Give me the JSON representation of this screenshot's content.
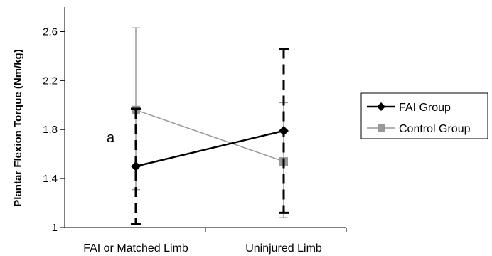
{
  "chart_data": {
    "type": "line",
    "title": "",
    "xlabel": "",
    "ylabel": "Plantar Flexion Torque (Nm/kg)",
    "categories": [
      "FAI or Matched Limb",
      "Uninjured Limb"
    ],
    "ylim": [
      1,
      2.8
    ],
    "yticks": [
      1,
      1.4,
      1.8,
      2.2,
      2.6
    ],
    "ytick_labels": [
      "1",
      "1.4",
      "1.8",
      "2.2",
      "2.6"
    ],
    "grid": false,
    "legend_position": "right",
    "annotations": [
      {
        "text": "a",
        "category": "FAI or Matched Limb"
      }
    ],
    "series": [
      {
        "name": "FAI Group",
        "color": "#000000",
        "marker": "diamond",
        "error_style": "dashed",
        "values": [
          1.5,
          1.79
        ],
        "error_low": [
          1.03,
          1.12
        ],
        "error_high": [
          1.97,
          2.46
        ]
      },
      {
        "name": "Control Group",
        "color": "#999999",
        "marker": "square",
        "error_style": "solid",
        "values": [
          1.96,
          1.54
        ],
        "error_low": [
          1.31,
          1.08
        ],
        "error_high": [
          2.63,
          2.02
        ]
      }
    ]
  }
}
